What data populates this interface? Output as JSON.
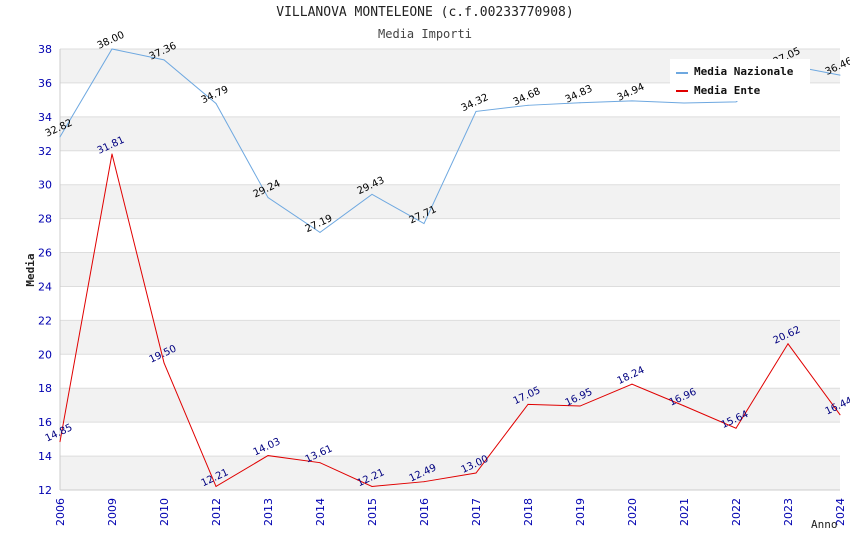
{
  "chart_data": {
    "type": "line",
    "title": "VILLANOVA MONTELEONE (c.f.00233770908)",
    "subtitle": "Media Importi",
    "xlabel": "Anno",
    "ylabel": "Media",
    "ylim": [
      12,
      38
    ],
    "yticks": [
      12,
      14,
      16,
      18,
      20,
      22,
      24,
      26,
      28,
      30,
      32,
      34,
      36,
      38
    ],
    "categories": [
      "2006",
      "2009",
      "2010",
      "2012",
      "2013",
      "2014",
      "2015",
      "2016",
      "2017",
      "2018",
      "2019",
      "2020",
      "2021",
      "2022",
      "2023",
      "2024"
    ],
    "series": [
      {
        "name": "Media Nazionale",
        "color": "#6ea8e0",
        "label_color": "#000000",
        "values": [
          32.82,
          38.0,
          37.36,
          34.79,
          29.24,
          27.19,
          29.43,
          27.71,
          34.32,
          34.68,
          34.83,
          34.94,
          34.82,
          34.88,
          37.05,
          36.46
        ],
        "labels": [
          "32.82",
          "38.00",
          "37.36",
          "34.79",
          "29.24",
          "27.19",
          "29.43",
          "27.71",
          "34.32",
          "34.68",
          "34.83",
          "34.94",
          "",
          "",
          "37.05",
          "36.46"
        ]
      },
      {
        "name": "Media Ente",
        "color": "#e00000",
        "label_color": "#000080",
        "values": [
          14.85,
          31.81,
          19.5,
          12.21,
          14.03,
          13.61,
          12.21,
          12.49,
          13.0,
          17.05,
          16.95,
          18.24,
          16.96,
          15.64,
          20.62,
          16.44
        ],
        "labels": [
          "14.85",
          "31.81",
          "19.50",
          "12.21",
          "14.03",
          "13.61",
          "12.21",
          "12.49",
          "13.00",
          "17.05",
          "16.95",
          "18.24",
          "16.96",
          "15.64",
          "20.62",
          "16.44"
        ]
      }
    ],
    "legend": "top-right",
    "grid": "horizontal bands"
  }
}
